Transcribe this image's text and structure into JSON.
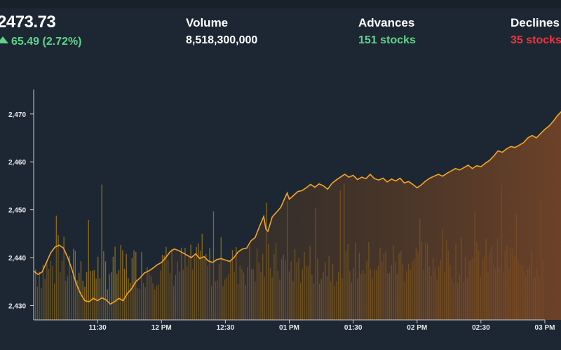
{
  "summary": {
    "price": "2473.73",
    "change": "65.49 (2.72%)",
    "change_direction": "up",
    "volume_label": "Volume",
    "volume_value": "8,518,300,000",
    "advances_label": "Advances",
    "advances_value": "151 stocks",
    "declines_label": "Declines",
    "declines_value": "35 stocks"
  },
  "colors": {
    "background": "#1d2733",
    "line": "#f5a623",
    "bars": "#8a6a1e",
    "up": "#5fd38b",
    "down": "#f0353d"
  },
  "chart_data": {
    "type": "line",
    "title": "",
    "xlabel": "",
    "ylabel": "",
    "ylim": [
      2427,
      2474.5
    ],
    "y_ticks": [
      2430,
      2440,
      2450,
      2460,
      2470
    ],
    "y_tick_labels": [
      "2,430",
      "2,440",
      "2,450",
      "2,460",
      "2,470"
    ],
    "x_tick_minutes": [
      30,
      60,
      90,
      120,
      150,
      180,
      210
    ],
    "x_tick_labels": [
      "11:30",
      "12 PM",
      "12:30",
      "01 PM",
      "01:30",
      "02 PM",
      "02:30",
      "03 PM"
    ],
    "x_ticks_all_minutes": [
      30,
      60,
      90,
      120,
      150,
      180,
      210,
      240
    ],
    "x_range_minutes": [
      0,
      240
    ],
    "x_minutes_note": "",
    "x_start": "11:00",
    "series": [
      {
        "name": "",
        "points": [
          [
            0,
            2437.2
          ],
          [
            2,
            2436.5
          ],
          [
            4,
            2437.0
          ],
          [
            6,
            2439.0
          ],
          [
            8,
            2441.0
          ],
          [
            10,
            2442.2
          ],
          [
            12,
            2442.6
          ],
          [
            14,
            2442.0
          ],
          [
            16,
            2440.0
          ],
          [
            18,
            2437.5
          ],
          [
            20,
            2434.5
          ],
          [
            22,
            2432.5
          ],
          [
            24,
            2431.0
          ],
          [
            26,
            2430.8
          ],
          [
            28,
            2431.5
          ],
          [
            30,
            2431.0
          ],
          [
            32,
            2431.6
          ],
          [
            34,
            2431.2
          ],
          [
            36,
            2430.3
          ],
          [
            38,
            2430.8
          ],
          [
            40,
            2431.5
          ],
          [
            42,
            2431.0
          ],
          [
            44,
            2432.5
          ],
          [
            46,
            2433.5
          ],
          [
            48,
            2435.0
          ],
          [
            50,
            2435.8
          ],
          [
            52,
            2436.8
          ],
          [
            54,
            2437.2
          ],
          [
            56,
            2437.8
          ],
          [
            58,
            2438.5
          ],
          [
            60,
            2439.0
          ],
          [
            62,
            2440.0
          ],
          [
            64,
            2441.2
          ],
          [
            66,
            2441.8
          ],
          [
            68,
            2441.5
          ],
          [
            70,
            2441.0
          ],
          [
            72,
            2440.5
          ],
          [
            74,
            2440.0
          ],
          [
            76,
            2440.8
          ],
          [
            78,
            2439.8
          ],
          [
            80,
            2440.2
          ],
          [
            82,
            2439.3
          ],
          [
            84,
            2439.0
          ],
          [
            86,
            2439.6
          ],
          [
            88,
            2439.8
          ],
          [
            90,
            2439.5
          ],
          [
            92,
            2439.2
          ],
          [
            94,
            2440.0
          ],
          [
            96,
            2441.2
          ],
          [
            98,
            2441.8
          ],
          [
            100,
            2442.0
          ],
          [
            102,
            2443.5
          ],
          [
            104,
            2444.2
          ],
          [
            106,
            2446.5
          ],
          [
            108,
            2448.6
          ],
          [
            109,
            2446.0
          ],
          [
            110,
            2445.5
          ],
          [
            112,
            2448.5
          ],
          [
            114,
            2449.5
          ],
          [
            116,
            2450.5
          ],
          [
            118,
            2452.5
          ],
          [
            119,
            2453.5
          ],
          [
            120,
            2452.2
          ],
          [
            122,
            2453.0
          ],
          [
            124,
            2453.8
          ],
          [
            126,
            2454.0
          ],
          [
            128,
            2454.6
          ],
          [
            130,
            2455.3
          ],
          [
            132,
            2454.7
          ],
          [
            134,
            2455.4
          ],
          [
            136,
            2455.0
          ],
          [
            138,
            2454.3
          ],
          [
            140,
            2455.5
          ],
          [
            142,
            2456.2
          ],
          [
            144,
            2456.8
          ],
          [
            146,
            2457.4
          ],
          [
            148,
            2456.8
          ],
          [
            150,
            2457.2
          ],
          [
            152,
            2456.3
          ],
          [
            154,
            2456.8
          ],
          [
            156,
            2456.5
          ],
          [
            158,
            2457.4
          ],
          [
            160,
            2456.5
          ],
          [
            162,
            2456.2
          ],
          [
            164,
            2456.6
          ],
          [
            166,
            2455.8
          ],
          [
            168,
            2456.4
          ],
          [
            170,
            2456.0
          ],
          [
            172,
            2456.6
          ],
          [
            174,
            2455.6
          ],
          [
            176,
            2455.9
          ],
          [
            178,
            2455.3
          ],
          [
            180,
            2454.6
          ],
          [
            182,
            2455.2
          ],
          [
            184,
            2456.0
          ],
          [
            186,
            2456.6
          ],
          [
            188,
            2457.0
          ],
          [
            190,
            2457.4
          ],
          [
            192,
            2457.0
          ],
          [
            194,
            2457.6
          ],
          [
            196,
            2458.1
          ],
          [
            198,
            2458.6
          ],
          [
            200,
            2458.3
          ],
          [
            202,
            2458.8
          ],
          [
            204,
            2459.3
          ],
          [
            206,
            2458.6
          ],
          [
            208,
            2459.2
          ],
          [
            210,
            2459.0
          ],
          [
            212,
            2459.7
          ],
          [
            214,
            2460.3
          ],
          [
            216,
            2461.2
          ],
          [
            218,
            2462.3
          ],
          [
            220,
            2462.0
          ],
          [
            222,
            2462.7
          ],
          [
            224,
            2463.2
          ],
          [
            226,
            2463.0
          ],
          [
            228,
            2463.5
          ],
          [
            230,
            2464.0
          ],
          [
            232,
            2465.0
          ],
          [
            234,
            2465.5
          ],
          [
            236,
            2465.0
          ],
          [
            238,
            2465.9
          ],
          [
            240,
            2466.8
          ],
          [
            242,
            2467.5
          ],
          [
            244,
            2468.5
          ],
          [
            246,
            2469.7
          ],
          [
            248,
            2470.6
          ],
          [
            250,
            2471.0
          ],
          [
            252,
            2472.0
          ],
          [
            254,
            2472.9
          ],
          [
            256,
            2473.7
          ]
        ]
      }
    ],
    "grid": false,
    "legend": "none"
  }
}
